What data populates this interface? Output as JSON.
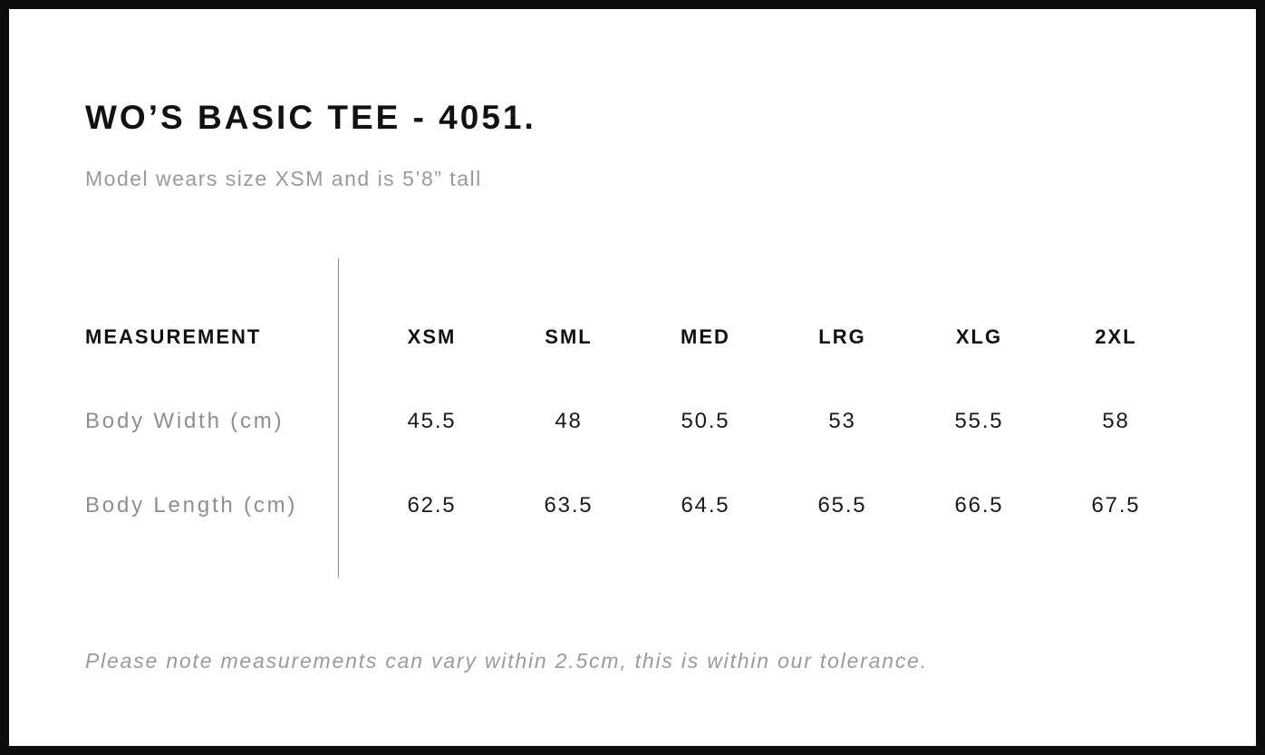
{
  "page": {
    "title": "WO’S BASIC TEE - 4051.",
    "subtitle": "Model wears size XSM and is 5’8” tall",
    "note": "Please note measurements can vary within 2.5cm, this is within our tolerance."
  },
  "chart_data": {
    "type": "table",
    "title": "WO’S BASIC TEE - 4051.",
    "columns": [
      "MEASUREMENT",
      "XSM",
      "SML",
      "MED",
      "LRG",
      "XLG",
      "2XL"
    ],
    "rows": [
      {
        "label": "Body Width (cm)",
        "values": [
          45.5,
          48,
          50.5,
          53,
          55.5,
          58
        ]
      },
      {
        "label": "Body Length (cm)",
        "values": [
          62.5,
          63.5,
          64.5,
          65.5,
          66.5,
          67.5
        ]
      }
    ],
    "layout_hints": {
      "divider_between_label_and_sizes": true,
      "grid": "off"
    }
  },
  "colors": {
    "frame_border": "#0c0c0c",
    "text_primary": "#111111",
    "text_muted": "#9a9a9a",
    "divider_line": "#8c8c8c",
    "background": "#ffffff"
  }
}
